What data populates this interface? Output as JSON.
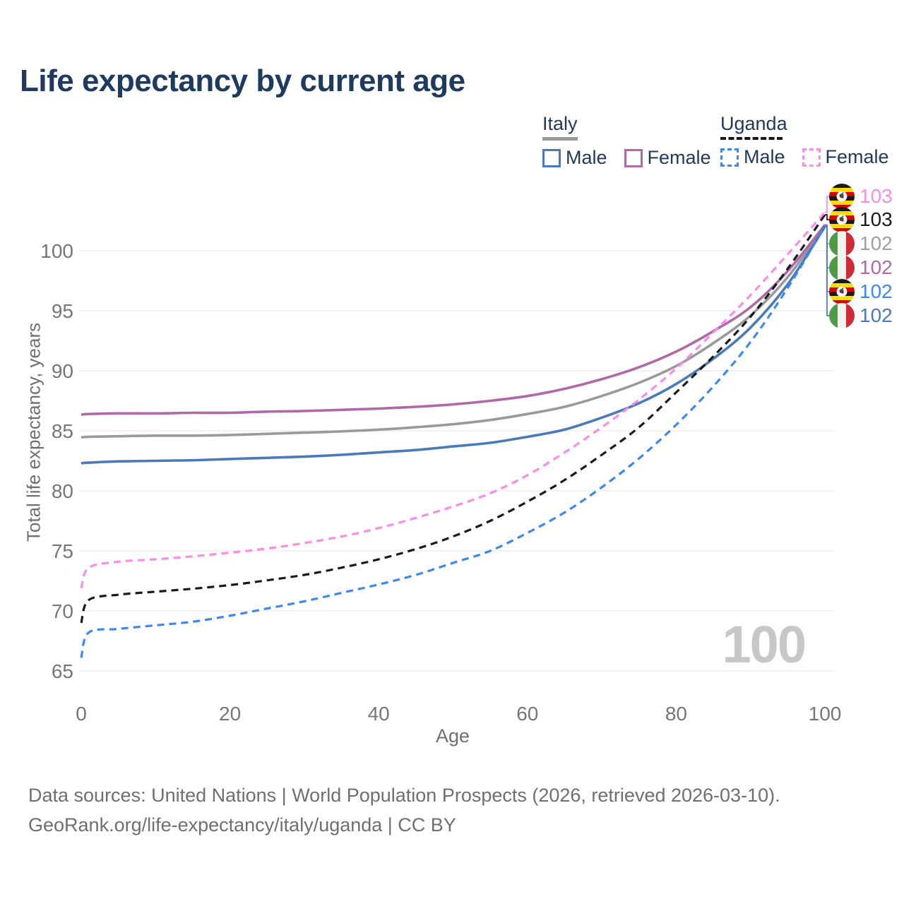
{
  "title": "Life expectancy by current age",
  "legend": {
    "groups": [
      {
        "name": "Italy",
        "underline_style": "solid",
        "underline_color": "#9a9a9a",
        "entries": [
          {
            "label": "Male",
            "color": "#4a7ab8",
            "dashed": false
          },
          {
            "label": "Female",
            "color": "#b069a8",
            "dashed": false
          }
        ]
      },
      {
        "name": "Uganda",
        "underline_style": "dashed",
        "underline_color": "#161616",
        "entries": [
          {
            "label": "Male",
            "color": "#3d87f0",
            "dashed": true
          },
          {
            "label": "Female",
            "color": "#fa8ce8",
            "dashed": true
          }
        ]
      }
    ]
  },
  "chart_data": {
    "type": "line",
    "title": "Life expectancy by current age",
    "xlabel": "Age",
    "ylabel": "Total life expectancy, years",
    "xlim": [
      0,
      100
    ],
    "ylim": [
      65,
      100
    ],
    "xticks": [
      0,
      20,
      40,
      60,
      80,
      100
    ],
    "yticks": [
      65,
      70,
      75,
      80,
      85,
      90,
      95,
      100
    ],
    "grid": "horizontal",
    "grid_color": "#ededed",
    "tick_color": "#767676",
    "x": [
      0,
      1,
      5,
      10,
      15,
      20,
      25,
      30,
      35,
      40,
      45,
      50,
      55,
      60,
      65,
      70,
      75,
      80,
      85,
      90,
      95,
      100
    ],
    "series": [
      {
        "id": "italy_total",
        "name": "Italy Total",
        "country": "Italy",
        "sex": "Total",
        "color": "#9a9a9a",
        "dashed": false,
        "values": [
          84.45,
          84.5,
          84.55,
          84.6,
          84.6,
          84.65,
          84.75,
          84.85,
          84.95,
          85.1,
          85.3,
          85.55,
          85.9,
          86.4,
          87.0,
          87.9,
          89.0,
          90.4,
          92.3,
          94.6,
          97.8,
          102.1
        ]
      },
      {
        "id": "italy_female",
        "name": "Italy Female",
        "country": "Italy",
        "sex": "Female",
        "color": "#b069a8",
        "dashed": false,
        "values": [
          86.35,
          86.4,
          86.45,
          86.45,
          86.5,
          86.5,
          86.6,
          86.65,
          86.75,
          86.85,
          87.0,
          87.2,
          87.5,
          87.9,
          88.5,
          89.3,
          90.3,
          91.6,
          93.3,
          95.3,
          98.3,
          102.15
        ]
      },
      {
        "id": "italy_male",
        "name": "Italy Male",
        "country": "Italy",
        "sex": "Male",
        "color": "#4a7ab8",
        "dashed": false,
        "values": [
          82.3,
          82.35,
          82.45,
          82.5,
          82.55,
          82.65,
          82.75,
          82.85,
          83.0,
          83.2,
          83.4,
          83.7,
          84.0,
          84.5,
          85.1,
          86.1,
          87.3,
          88.9,
          91.0,
          93.6,
          97.2,
          102.0
        ]
      },
      {
        "id": "uganda_male",
        "name": "Uganda Male",
        "country": "Uganda",
        "sex": "Male",
        "color": "#3d87f0",
        "dashed": true,
        "values": [
          66.1,
          68.2,
          68.5,
          68.8,
          69.1,
          69.6,
          70.2,
          70.8,
          71.5,
          72.2,
          73.0,
          74.0,
          75.0,
          76.5,
          78.2,
          80.3,
          82.7,
          85.5,
          88.7,
          92.4,
          96.9,
          102.05
        ]
      },
      {
        "id": "uganda_total",
        "name": "Uganda Total",
        "country": "Uganda",
        "sex": "Total",
        "color": "#1a1a1a",
        "dashed": true,
        "values": [
          69.0,
          70.9,
          71.35,
          71.6,
          71.85,
          72.15,
          72.55,
          73.0,
          73.6,
          74.3,
          75.15,
          76.2,
          77.5,
          79.1,
          80.9,
          83.0,
          85.3,
          88.2,
          91.2,
          94.5,
          98.5,
          103.0
        ]
      },
      {
        "id": "uganda_female",
        "name": "Uganda Female",
        "country": "Uganda",
        "sex": "Female",
        "color": "#fa8ce8",
        "dashed": true,
        "values": [
          71.9,
          73.6,
          74.1,
          74.3,
          74.55,
          74.85,
          75.2,
          75.65,
          76.2,
          76.9,
          77.75,
          78.7,
          79.8,
          81.3,
          83.2,
          85.3,
          87.6,
          90.2,
          93.2,
          96.3,
          99.7,
          103.2
        ]
      }
    ]
  },
  "end_labels": [
    {
      "flag": "uganda",
      "series": "uganda_female",
      "value": "103",
      "color": "#fa8ce8"
    },
    {
      "flag": "uganda",
      "series": "uganda_total",
      "value": "103",
      "color": "#1a1a1a"
    },
    {
      "flag": "italy",
      "series": "italy_total",
      "value": "102",
      "color": "#a0a0a0"
    },
    {
      "flag": "italy",
      "series": "italy_female",
      "value": "102",
      "color": "#b069a8"
    },
    {
      "flag": "uganda",
      "series": "uganda_male",
      "value": "102",
      "color": "#3d87f0"
    },
    {
      "flag": "italy",
      "series": "italy_male",
      "value": "102",
      "color": "#4a7ab8"
    }
  ],
  "watermark": "100",
  "footer": {
    "line1": "Data sources: United Nations | World Population Prospects (2026, retrieved 2026-03-10).",
    "line2": "GeoRank.org/life-expectancy/italy/uganda | CC BY"
  }
}
